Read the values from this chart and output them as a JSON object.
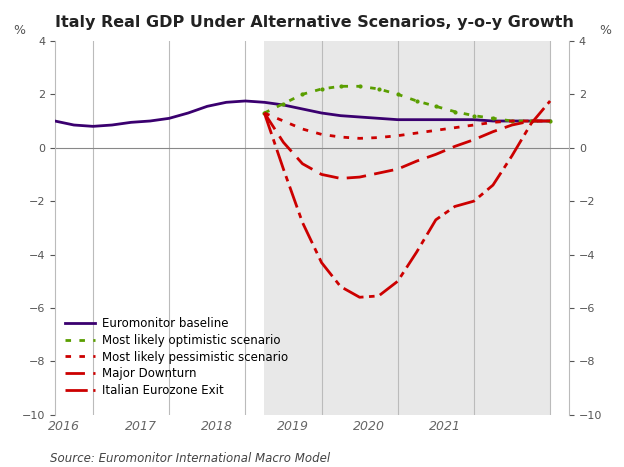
{
  "title": "Italy Real GDP Under Alternative Scenarios, y-o-y Growth",
  "source": "Source: Euromonitor International Macro Model",
  "ylim": [
    -10,
    4
  ],
  "yticks": [
    -10,
    -8,
    -6,
    -4,
    -2,
    0,
    2,
    4
  ],
  "background_color": "#ffffff",
  "shaded_start": 2018.0,
  "shaded_end": 2021.75,
  "xlim": [
    2015.25,
    2022.0
  ],
  "vlines": [
    2015.75,
    2016.75,
    2017.75,
    2018.75,
    2019.75,
    2020.75,
    2021.75
  ],
  "xtick_positions": [
    2015.375,
    2016.375,
    2017.375,
    2018.375,
    2019.375,
    2020.375,
    2021.375
  ],
  "xtick_labels": [
    "2016",
    "2017",
    "2018",
    "2019",
    "2020",
    "2021",
    ""
  ],
  "series": {
    "baseline": {
      "label": "Euromonitor baseline",
      "color": "#3a006f",
      "linestyle": "solid",
      "linewidth": 2.0,
      "x": [
        2015.25,
        2015.5,
        2015.75,
        2016.0,
        2016.25,
        2016.5,
        2016.75,
        2017.0,
        2017.25,
        2017.5,
        2017.75,
        2018.0,
        2018.25,
        2018.5,
        2018.75,
        2019.0,
        2019.25,
        2019.5,
        2019.75,
        2020.0,
        2020.25,
        2020.5,
        2020.75,
        2021.0,
        2021.25,
        2021.5,
        2021.75
      ],
      "y": [
        1.0,
        0.85,
        0.8,
        0.85,
        0.95,
        1.0,
        1.1,
        1.3,
        1.55,
        1.7,
        1.75,
        1.7,
        1.6,
        1.45,
        1.3,
        1.2,
        1.15,
        1.1,
        1.05,
        1.05,
        1.05,
        1.05,
        1.05,
        1.0,
        1.0,
        1.0,
        1.0
      ]
    },
    "optimistic": {
      "label": "Most likely optimistic scenario",
      "color": "#5a9e00",
      "linewidth": 2.0,
      "x": [
        2018.0,
        2018.25,
        2018.5,
        2018.75,
        2019.0,
        2019.25,
        2019.5,
        2019.75,
        2020.0,
        2020.25,
        2020.5,
        2020.75,
        2021.0,
        2021.25,
        2021.5,
        2021.75
      ],
      "y": [
        1.3,
        1.65,
        2.0,
        2.2,
        2.3,
        2.3,
        2.2,
        2.0,
        1.75,
        1.55,
        1.35,
        1.2,
        1.1,
        1.0,
        1.0,
        1.0
      ]
    },
    "pessimistic": {
      "label": "Most likely pessimistic scenario",
      "color": "#cc0000",
      "linewidth": 2.0,
      "x": [
        2018.0,
        2018.25,
        2018.5,
        2018.75,
        2019.0,
        2019.25,
        2019.5,
        2019.75,
        2020.0,
        2020.25,
        2020.5,
        2020.75,
        2021.0,
        2021.25,
        2021.5,
        2021.75
      ],
      "y": [
        1.3,
        1.0,
        0.7,
        0.5,
        0.4,
        0.35,
        0.38,
        0.45,
        0.55,
        0.65,
        0.75,
        0.85,
        0.95,
        1.0,
        1.0,
        1.0
      ]
    },
    "major_downturn": {
      "label": "Major Downturn",
      "color": "#cc0000",
      "linewidth": 2.0,
      "x": [
        2018.0,
        2018.25,
        2018.5,
        2018.75,
        2019.0,
        2019.25,
        2019.5,
        2019.75,
        2020.0,
        2020.25,
        2020.5,
        2020.75,
        2021.0,
        2021.25,
        2021.5,
        2021.75
      ],
      "y": [
        1.3,
        0.2,
        -0.6,
        -1.0,
        -1.15,
        -1.1,
        -0.95,
        -0.8,
        -0.5,
        -0.25,
        0.05,
        0.3,
        0.6,
        0.85,
        1.0,
        1.0
      ]
    },
    "eurozone_exit": {
      "label": "Italian Eurozone Exit",
      "color": "#cc0000",
      "linewidth": 2.0,
      "x": [
        2018.0,
        2018.25,
        2018.5,
        2018.75,
        2019.0,
        2019.25,
        2019.5,
        2019.75,
        2020.0,
        2020.25,
        2020.5,
        2020.75,
        2021.0,
        2021.25,
        2021.5,
        2021.75
      ],
      "y": [
        1.3,
        -0.8,
        -2.8,
        -4.3,
        -5.2,
        -5.6,
        -5.55,
        -5.0,
        -3.9,
        -2.7,
        -2.2,
        -2.0,
        -1.4,
        -0.3,
        0.9,
        1.75
      ]
    }
  }
}
